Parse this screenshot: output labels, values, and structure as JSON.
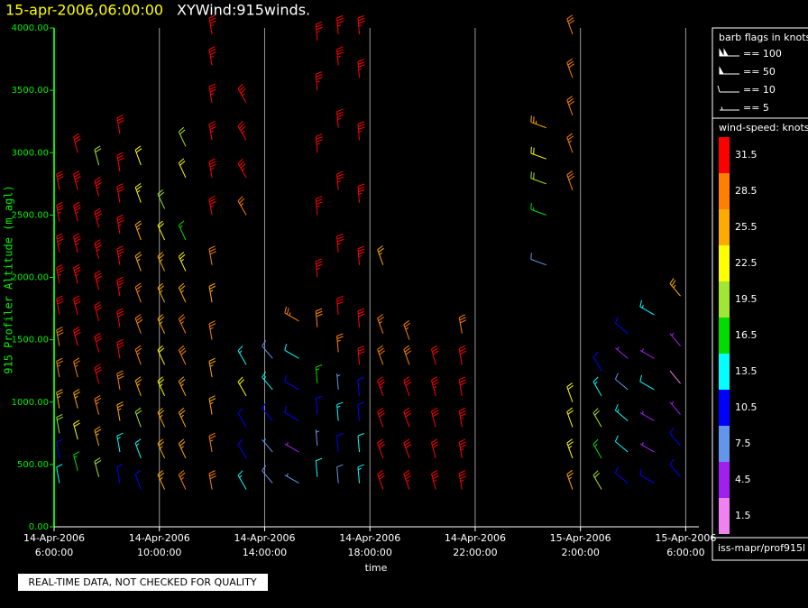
{
  "chart_data": {
    "type": "wind-barb",
    "title_time": "15-apr-2006,06:00:00",
    "title": "XYWind:915winds.",
    "x_label": "time",
    "y_label": "915 Profiler Altitude (m agl)",
    "xlim": [
      6,
      30.5
    ],
    "xticks": [
      {
        "value": 6,
        "label": [
          "14-Apr-2006",
          "6:00:00"
        ]
      },
      {
        "value": 10,
        "label": [
          "14-Apr-2006",
          "10:00:00"
        ]
      },
      {
        "value": 14,
        "label": [
          "14-Apr-2006",
          "14:00:00"
        ]
      },
      {
        "value": 18,
        "label": [
          "14-Apr-2006",
          "18:00:00"
        ]
      },
      {
        "value": 22,
        "label": [
          "14-Apr-2006",
          "22:00:00"
        ]
      },
      {
        "value": 26,
        "label": [
          "15-Apr-2006",
          "2:00:00"
        ]
      },
      {
        "value": 30,
        "label": [
          "15-Apr-2006",
          "6:00:00"
        ]
      }
    ],
    "ylim": [
      0,
      4000
    ],
    "yticks": [
      {
        "value": 0,
        "label": "0.00"
      },
      {
        "value": 500,
        "label": "500.00"
      },
      {
        "value": 1000,
        "label": "1000.00"
      },
      {
        "value": 1500,
        "label": "1500.00"
      },
      {
        "value": 2000,
        "label": "2000.00"
      },
      {
        "value": 2500,
        "label": "2500.00"
      },
      {
        "value": 3000,
        "label": "3000.00"
      },
      {
        "value": 3500,
        "label": "3500.00"
      },
      {
        "value": 4000,
        "label": "4000.00"
      }
    ],
    "grid": true,
    "grid_color": "#999999",
    "profiles": [
      {
        "x": 6.2,
        "dir": 350,
        "altitude": [
          350,
          550,
          750,
          950,
          1200,
          1450,
          1700,
          1950,
          2200,
          2450,
          2700
        ],
        "speed": [
          12,
          9,
          20,
          24,
          27,
          29,
          32,
          33,
          34,
          33,
          32
        ]
      },
      {
        "x": 6.9,
        "dir": 345,
        "altitude": [
          450,
          700,
          950,
          1200,
          1450,
          1700,
          1950,
          2200,
          2450,
          2700,
          3000
        ],
        "speed": [
          15,
          22,
          26,
          27,
          30,
          32,
          33,
          34,
          34,
          33,
          32
        ]
      },
      {
        "x": 7.7,
        "dir": 345,
        "altitude": [
          400,
          650,
          900,
          1150,
          1400,
          1650,
          1900,
          2150,
          2400,
          2650,
          2900
        ],
        "speed": [
          18,
          24,
          27,
          30,
          31,
          32,
          33,
          34,
          34,
          33,
          20
        ]
      },
      {
        "x": 8.5,
        "dir": 350,
        "altitude": [
          350,
          600,
          850,
          1100,
          1350,
          1600,
          1850,
          2100,
          2350,
          2600,
          2850,
          3150
        ],
        "speed": [
          10,
          14,
          25,
          28,
          30,
          31,
          33,
          34,
          33,
          32,
          30,
          31
        ]
      },
      {
        "x": 9.3,
        "dir": 340,
        "altitude": [
          300,
          550,
          800,
          1050,
          1300,
          1550,
          1800,
          2050,
          2300,
          2600,
          2900
        ],
        "speed": [
          9,
          14,
          19,
          24,
          27,
          28,
          27,
          26,
          25,
          23,
          21
        ]
      },
      {
        "x": 10.2,
        "dir": 335,
        "altitude": [
          300,
          550,
          800,
          1050,
          1300,
          1550,
          1800,
          2050,
          2300,
          2550
        ],
        "speed": [
          25,
          26,
          24,
          23,
          22,
          25,
          26,
          24,
          22,
          20
        ]
      },
      {
        "x": 11.0,
        "dir": 335,
        "altitude": [
          300,
          550,
          800,
          1050,
          1300,
          1550,
          1800,
          2050,
          2300,
          2800,
          3050
        ],
        "speed": [
          27,
          26,
          25,
          24,
          28,
          27,
          26,
          23,
          17,
          22,
          20
        ]
      },
      {
        "x": 12.0,
        "dir": 350,
        "altitude": [
          300,
          600,
          900,
          1200,
          1500,
          1800,
          2100,
          2500,
          2800,
          3100,
          3400,
          3700,
          3950
        ],
        "speed": [
          28,
          27,
          26,
          24,
          27,
          25,
          28,
          34,
          34,
          33,
          34,
          33,
          34
        ]
      },
      {
        "x": 13.3,
        "dir": 330,
        "altitude": [
          300,
          550,
          800,
          1050,
          1300,
          2500,
          2800,
          3100,
          3400
        ],
        "speed": [
          14,
          10,
          9,
          21,
          13,
          27,
          34,
          33,
          34
        ]
      },
      {
        "x": 14.3,
        "dir": 320,
        "altitude": [
          350,
          600,
          850,
          1100,
          1350
        ],
        "speed": [
          8,
          6,
          11,
          13,
          8
        ]
      },
      {
        "x": 15.3,
        "dir": 300,
        "altitude": [
          350,
          600,
          850,
          1100,
          1350,
          1650
        ],
        "speed": [
          6,
          5,
          11,
          9,
          12,
          27
        ]
      },
      {
        "x": 16.0,
        "dir": 355,
        "altitude": [
          400,
          650,
          900,
          1150,
          1600,
          2000,
          2500,
          3000,
          3500,
          3900
        ],
        "speed": [
          12,
          6,
          9,
          17,
          28,
          33,
          34,
          34,
          34,
          34
        ]
      },
      {
        "x": 16.8,
        "dir": 355,
        "altitude": [
          350,
          600,
          850,
          1100,
          1400,
          1700,
          2200,
          2700,
          3200,
          3700,
          3950
        ],
        "speed": [
          8,
          10,
          13,
          7,
          27,
          31,
          33,
          34,
          34,
          34,
          33
        ]
      },
      {
        "x": 17.6,
        "dir": 355,
        "altitude": [
          350,
          600,
          850,
          1050,
          1300,
          1600,
          2100,
          2600,
          3100,
          3600,
          3950
        ],
        "speed": [
          14,
          12,
          9,
          10,
          30,
          32,
          34,
          34,
          34,
          34,
          33
        ]
      },
      {
        "x": 18.5,
        "dir": 340,
        "altitude": [
          300,
          550,
          800,
          1050,
          1300,
          1550,
          2100
        ],
        "speed": [
          30,
          31,
          32,
          33,
          28,
          27,
          25
        ]
      },
      {
        "x": 19.5,
        "dir": 340,
        "altitude": [
          300,
          550,
          800,
          1050,
          1300,
          1500
        ],
        "speed": [
          33,
          32,
          31,
          32,
          28,
          27
        ]
      },
      {
        "x": 20.5,
        "dir": 345,
        "altitude": [
          300,
          550,
          800,
          1050,
          1300
        ],
        "speed": [
          33,
          32,
          31,
          33,
          30
        ]
      },
      {
        "x": 21.5,
        "dir": 350,
        "altitude": [
          300,
          550,
          800,
          1050,
          1300,
          1550
        ],
        "speed": [
          33,
          34,
          33,
          32,
          31,
          29
        ]
      },
      {
        "x": 24.7,
        "dir": 290,
        "altitude": [
          2100,
          2500,
          2750,
          2950,
          3200
        ],
        "speed": [
          8,
          15,
          19,
          22,
          25
        ]
      },
      {
        "x": 25.7,
        "dir": 340,
        "altitude": [
          300,
          550,
          800,
          1000,
          2700,
          3000,
          3300,
          3600,
          3950
        ],
        "speed": [
          24,
          23,
          22,
          21,
          28,
          27,
          28,
          28,
          28
        ]
      },
      {
        "x": 26.8,
        "dir": 330,
        "altitude": [
          300,
          550,
          800,
          1050,
          1250
        ],
        "speed": [
          19,
          17,
          20,
          13,
          11
        ]
      },
      {
        "x": 27.8,
        "dir": 310,
        "altitude": [
          350,
          600,
          850,
          1100,
          1350,
          1550
        ],
        "speed": [
          10,
          12,
          14,
          8,
          5,
          11
        ]
      },
      {
        "x": 28.8,
        "dir": 300,
        "altitude": [
          350,
          600,
          850,
          1100,
          1350,
          1700
        ],
        "speed": [
          9,
          5,
          4,
          12,
          4,
          14
        ]
      },
      {
        "x": 29.8,
        "dir": 320,
        "altitude": [
          400,
          650,
          900,
          1150,
          1450,
          1850
        ],
        "speed": [
          11,
          9,
          4,
          2,
          5,
          24
        ]
      }
    ],
    "barb_legend": {
      "title": "barb flags in knots",
      "items": [
        {
          "value": 100,
          "label": "== 100"
        },
        {
          "value": 50,
          "label": "== 50"
        },
        {
          "value": 10,
          "label": "== 10"
        },
        {
          "value": 5,
          "label": "== 5"
        }
      ]
    },
    "colorbar": {
      "title": "wind-speed: knots",
      "levels": [
        {
          "value": 31.5,
          "color": "#ff0000"
        },
        {
          "value": 28.5,
          "color": "#ff8000"
        },
        {
          "value": 25.5,
          "color": "#ffaa00"
        },
        {
          "value": 22.5,
          "color": "#ffff00"
        },
        {
          "value": 19.5,
          "color": "#a0e632"
        },
        {
          "value": 16.5,
          "color": "#00dd00"
        },
        {
          "value": 13.5,
          "color": "#00ffff"
        },
        {
          "value": 10.5,
          "color": "#0000ff"
        },
        {
          "value": 7.5,
          "color": "#6495ed"
        },
        {
          "value": 4.5,
          "color": "#a020f0"
        },
        {
          "value": 1.5,
          "color": "#ee82ee"
        }
      ]
    },
    "source": "iss-mapr/prof915l",
    "notice": "REAL-TIME DATA, NOT CHECKED FOR QUALITY"
  }
}
